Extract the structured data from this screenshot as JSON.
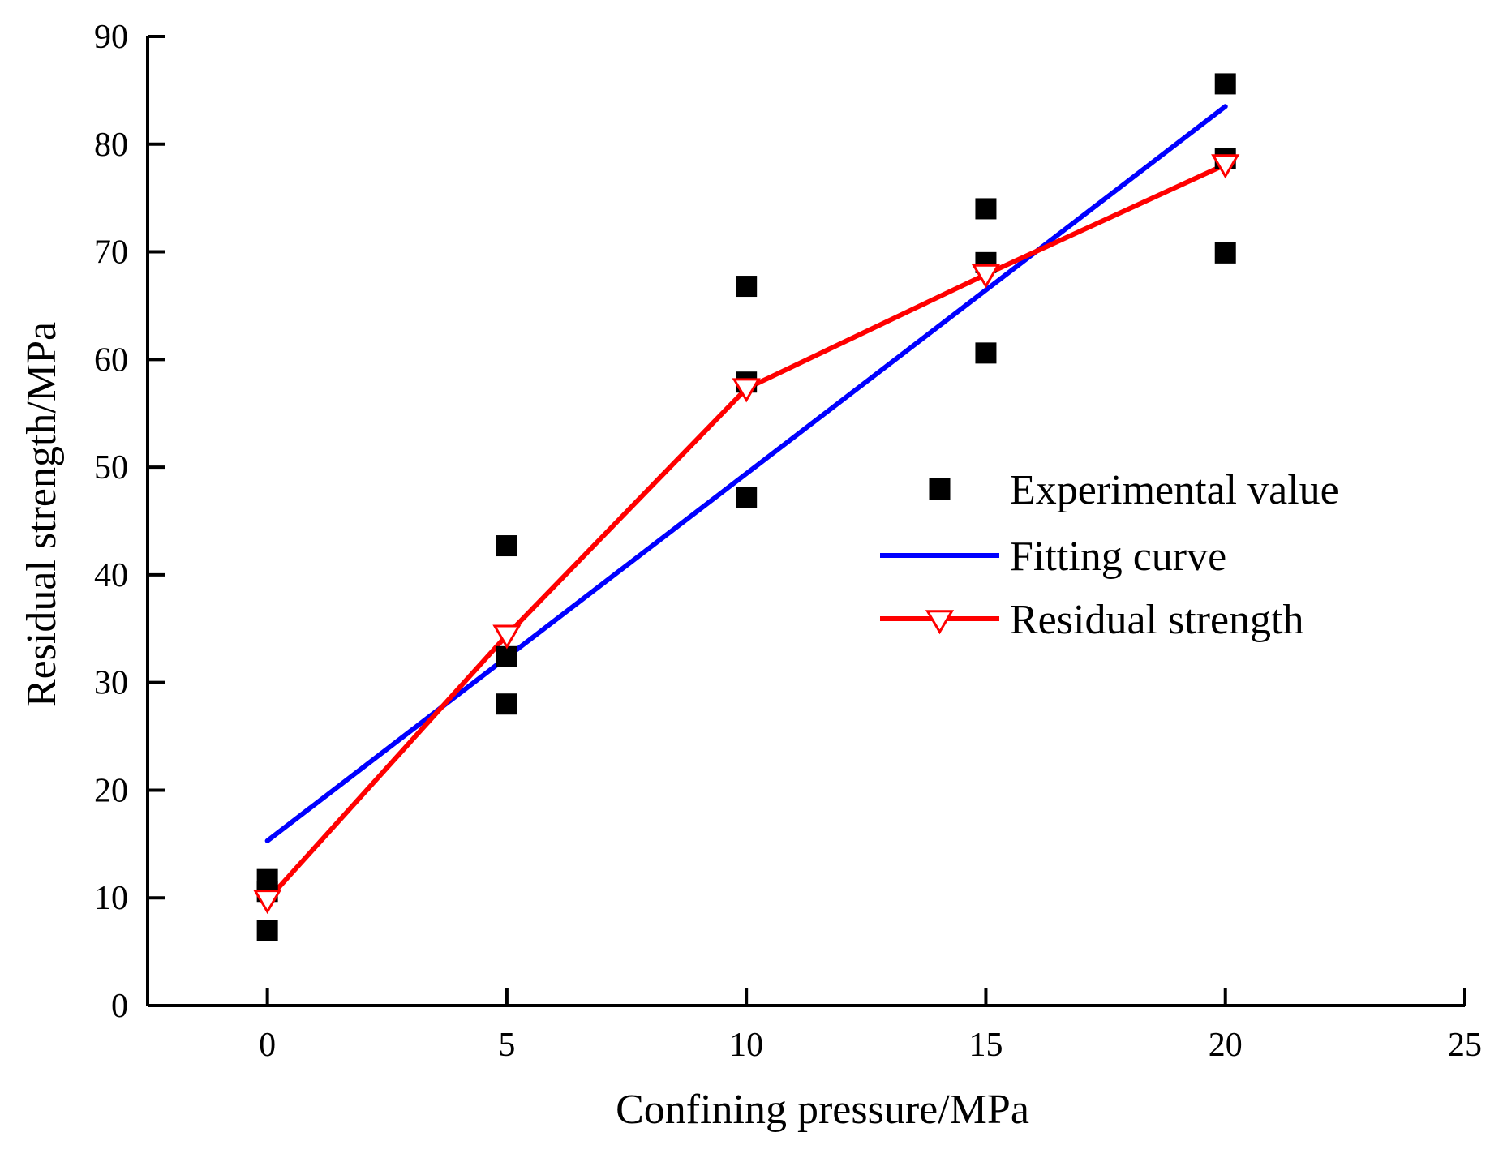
{
  "chart_data": {
    "type": "scatter",
    "title": "",
    "xlabel": "Confining pressure/MPa",
    "ylabel": "Residual strength/MPa",
    "xlim": [
      -2.5,
      25
    ],
    "ylim": [
      0,
      90
    ],
    "x_ticks": [
      0,
      5,
      10,
      15,
      20,
      25
    ],
    "y_ticks": [
      0,
      10,
      20,
      30,
      40,
      50,
      60,
      70,
      80,
      90
    ],
    "grid": false,
    "legend_position": "center-right",
    "series": [
      {
        "name": "Experimental value",
        "kind": "scatter",
        "marker": "square",
        "color": "#000000",
        "points": [
          [
            0,
            11.7
          ],
          [
            0,
            10.6
          ],
          [
            0,
            7.0
          ],
          [
            5,
            42.7
          ],
          [
            5,
            32.4
          ],
          [
            5,
            28.0
          ],
          [
            10,
            66.8
          ],
          [
            10,
            57.9
          ],
          [
            10,
            47.2
          ],
          [
            15,
            74.0
          ],
          [
            15,
            69.0
          ],
          [
            15,
            60.6
          ],
          [
            20,
            85.6
          ],
          [
            20,
            78.7
          ],
          [
            20,
            69.9
          ]
        ]
      },
      {
        "name": "Fitting curve",
        "kind": "line",
        "color": "#0000ff",
        "points": [
          [
            0,
            15.3
          ],
          [
            20,
            83.5
          ]
        ]
      },
      {
        "name": "Residual strength",
        "kind": "line-marker",
        "marker": "triangle-down-open",
        "color": "#ff0000",
        "points": [
          [
            0,
            9.8
          ],
          [
            5,
            34.4
          ],
          [
            10,
            57.3
          ],
          [
            15,
            67.9
          ],
          [
            20,
            78.1
          ]
        ]
      }
    ]
  }
}
